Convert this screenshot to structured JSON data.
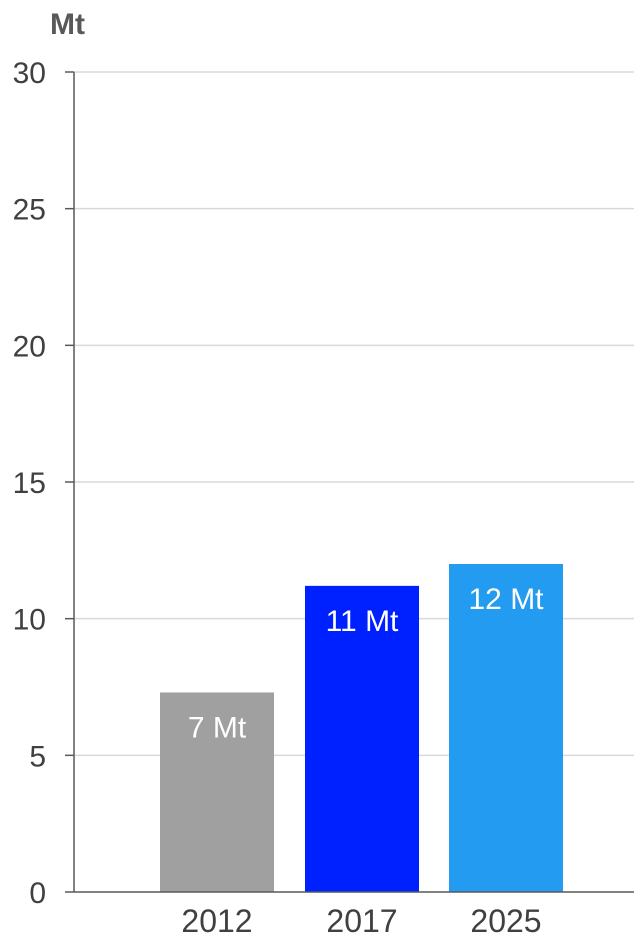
{
  "chart_data": {
    "type": "bar",
    "title": "",
    "xlabel": "",
    "ylabel": "Mt",
    "ylim": [
      0,
      30
    ],
    "yticks": [
      0,
      5,
      10,
      15,
      20,
      25,
      30
    ],
    "grid": true,
    "categories": [
      "2012",
      "2017",
      "2025"
    ],
    "values": [
      7.3,
      11.2,
      12.0
    ],
    "data_labels": [
      "7 Mt",
      "11 Mt",
      "12 Mt"
    ],
    "colors": [
      "#a0a0a0",
      "#0021ff",
      "#229bf0"
    ]
  }
}
